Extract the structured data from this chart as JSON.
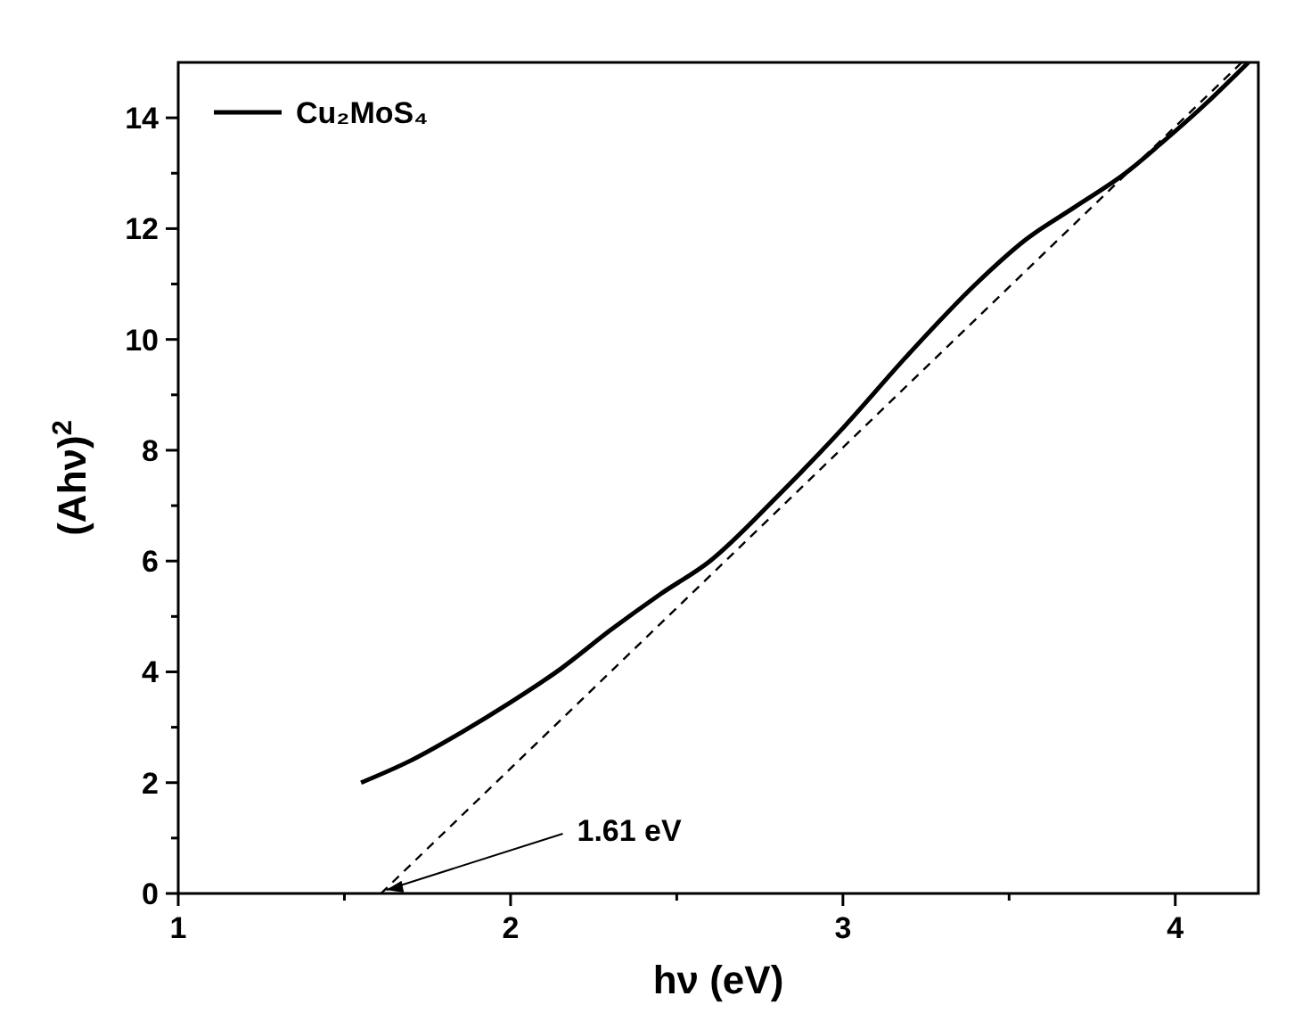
{
  "chart_data": {
    "type": "line",
    "xlabel": "hν (eV)",
    "ylabel": "(Ahν)$^{2}$",
    "xlim": [
      1,
      4.25
    ],
    "ylim": [
      0,
      15
    ],
    "xticks": [
      1,
      {
        "value": 1.5,
        "label": null
      },
      2,
      {
        "value": 2.5,
        "label": null
      },
      3,
      {
        "value": 3.5,
        "label": null
      },
      4
    ],
    "yticks": [
      0,
      {
        "value": 1,
        "label": null
      },
      2,
      {
        "value": 3,
        "label": null
      },
      4,
      {
        "value": 5,
        "label": null
      },
      6,
      {
        "value": 7,
        "label": null
      },
      8,
      {
        "value": 9,
        "label": null
      },
      10,
      {
        "value": 11,
        "label": null
      },
      12,
      {
        "value": 13,
        "label": null
      },
      14
    ],
    "legend": "top left",
    "grid": false,
    "series": [
      {
        "name": "Cu₂MoS₄",
        "color": "#000000",
        "line_style": "solid",
        "x": [
          1.55,
          1.7,
          1.85,
          2.0,
          2.15,
          2.3,
          2.45,
          2.6,
          2.8,
          3.0,
          3.2,
          3.4,
          3.55,
          3.7,
          3.85,
          3.95,
          4.1,
          4.22
        ],
        "values": [
          2.0,
          2.4,
          2.9,
          3.45,
          4.05,
          4.75,
          5.4,
          6.0,
          7.15,
          8.4,
          9.75,
          11.0,
          11.8,
          12.4,
          13.0,
          13.5,
          14.3,
          15.0
        ]
      },
      {
        "color": "#000000",
        "line_style": "dashed",
        "x": [
          1.61,
          4.2
        ],
        "values": [
          0,
          15
        ]
      }
    ],
    "annotations": [
      {
        "text": "1.61 eV",
        "x": 1.61,
        "y": 0
      }
    ]
  }
}
